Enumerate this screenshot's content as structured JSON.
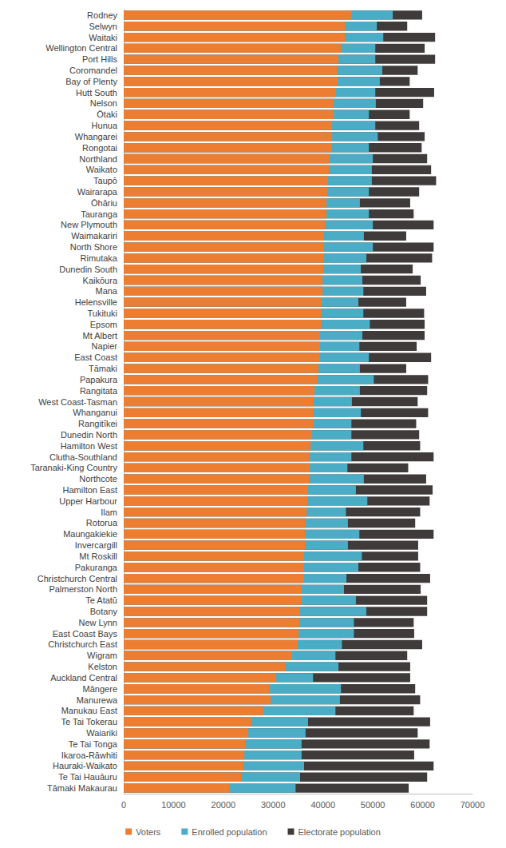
{
  "chart_data": {
    "type": "bar",
    "orientation": "horizontal",
    "stacked": false,
    "grid": false,
    "legend": "bottom",
    "categories": [
      "Rodney",
      "Selwyn",
      "Waitaki",
      "Wellington Central",
      "Port Hills",
      "Coromandel",
      "Bay of Plenty",
      "Hutt South",
      "Nelson",
      "Ōtaki",
      "Hunua",
      "Whangarei",
      "Rongotai",
      "Northland",
      "Waikato",
      "Taupō",
      "Wairarapa",
      "Ōhāriu",
      "Tauranga",
      "New Plymouth",
      "Waimakariri",
      "North Shore",
      "Rimutaka",
      "Dunedin South",
      "Kaikōura",
      "Mana",
      "Helensville",
      "Tukituki",
      "Epsom",
      "Mt Albert",
      "Napier",
      "East Coast",
      "Tāmaki",
      "Papakura",
      "Rangitata",
      "West Coast-Tasman",
      "Whanganui",
      "Rangitīkei",
      "Dunedin North",
      "Hamilton West",
      "Clutha-Southland",
      "Taranaki-King Country",
      "Northcote",
      "Hamilton East",
      "Upper Harbour",
      "Ilam",
      "Rotorua",
      "Maungakiekie",
      "Invercargill",
      "Mt Roskill",
      "Pakuranga",
      "Christchurch Central",
      "Palmerston North",
      "Te Atatū",
      "Botany",
      "New Lynn",
      "East Coast Bays",
      "Christchurch East",
      "Wigram",
      "Kelston",
      "Auckland Central",
      "Māngere",
      "Manurewa",
      "Manukau East",
      "Te Tai Tokerau",
      "Waiariki",
      "Te Tai Tonga",
      "Ikaroa-Rāwhiti",
      "Hauraki-Waikato",
      "Te Tai Hauāuru",
      "Tāmaki Makaurau"
    ],
    "series": [
      {
        "name": "Voters",
        "color": "#ED7D31",
        "values": [
          45700,
          44400,
          44400,
          43600,
          43100,
          42900,
          42900,
          42600,
          42100,
          42100,
          41800,
          41800,
          41800,
          41300,
          41200,
          41000,
          40900,
          40700,
          40700,
          40400,
          40200,
          40100,
          40100,
          40100,
          39900,
          39900,
          39700,
          39600,
          39600,
          39400,
          39400,
          39300,
          39100,
          38900,
          38300,
          38100,
          38100,
          38000,
          37800,
          37500,
          37300,
          37300,
          37200,
          37000,
          36900,
          36700,
          36500,
          36400,
          36400,
          36200,
          36200,
          36200,
          35700,
          35600,
          35400,
          35300,
          35100,
          34900,
          33800,
          32500,
          30600,
          29300,
          29500,
          28000,
          25600,
          25000,
          24500,
          24200,
          24000,
          23600,
          21200
        ]
      },
      {
        "name": "Enrolled population",
        "color": "#4BACC6",
        "values": [
          54000,
          50800,
          52100,
          50500,
          50500,
          51900,
          51400,
          50500,
          50600,
          49200,
          50500,
          51000,
          49200,
          50000,
          49800,
          49800,
          49200,
          47400,
          49200,
          50000,
          48200,
          50000,
          48700,
          47600,
          47900,
          48100,
          47100,
          48100,
          49400,
          47900,
          47300,
          49200,
          47400,
          50200,
          47400,
          45800,
          47600,
          45700,
          45700,
          48100,
          45700,
          44900,
          48200,
          46600,
          48900,
          44600,
          45000,
          47300,
          45000,
          47800,
          47100,
          44700,
          44200,
          46600,
          48700,
          46200,
          46200,
          43800,
          42500,
          43100,
          38000,
          43600,
          43400,
          42500,
          37000,
          36500,
          35700,
          35700,
          36200,
          35400,
          34500
        ]
      },
      {
        "name": "Electorate population",
        "color": "#403B3B",
        "values": [
          59900,
          56900,
          62500,
          60400,
          62500,
          59000,
          57400,
          62300,
          60100,
          57400,
          59300,
          60400,
          59800,
          60900,
          61700,
          62700,
          59300,
          57500,
          58200,
          62200,
          56700,
          62200,
          61900,
          58000,
          59600,
          60700,
          56700,
          60300,
          60400,
          60400,
          58800,
          61700,
          56700,
          61100,
          60900,
          59000,
          61100,
          58700,
          59300,
          59500,
          62200,
          57100,
          60700,
          62000,
          61400,
          59500,
          58500,
          62200,
          59100,
          59100,
          59500,
          61500,
          59600,
          60900,
          60900,
          58200,
          58300,
          59900,
          56900,
          57500,
          57500,
          58500,
          59500,
          58200,
          61500,
          59000,
          61400,
          58300,
          62200,
          60900,
          57200
        ]
      }
    ],
    "xlim": [
      0,
      70000
    ],
    "xticks": [
      0,
      10000,
      20000,
      30000,
      40000,
      50000,
      60000,
      70000
    ]
  }
}
